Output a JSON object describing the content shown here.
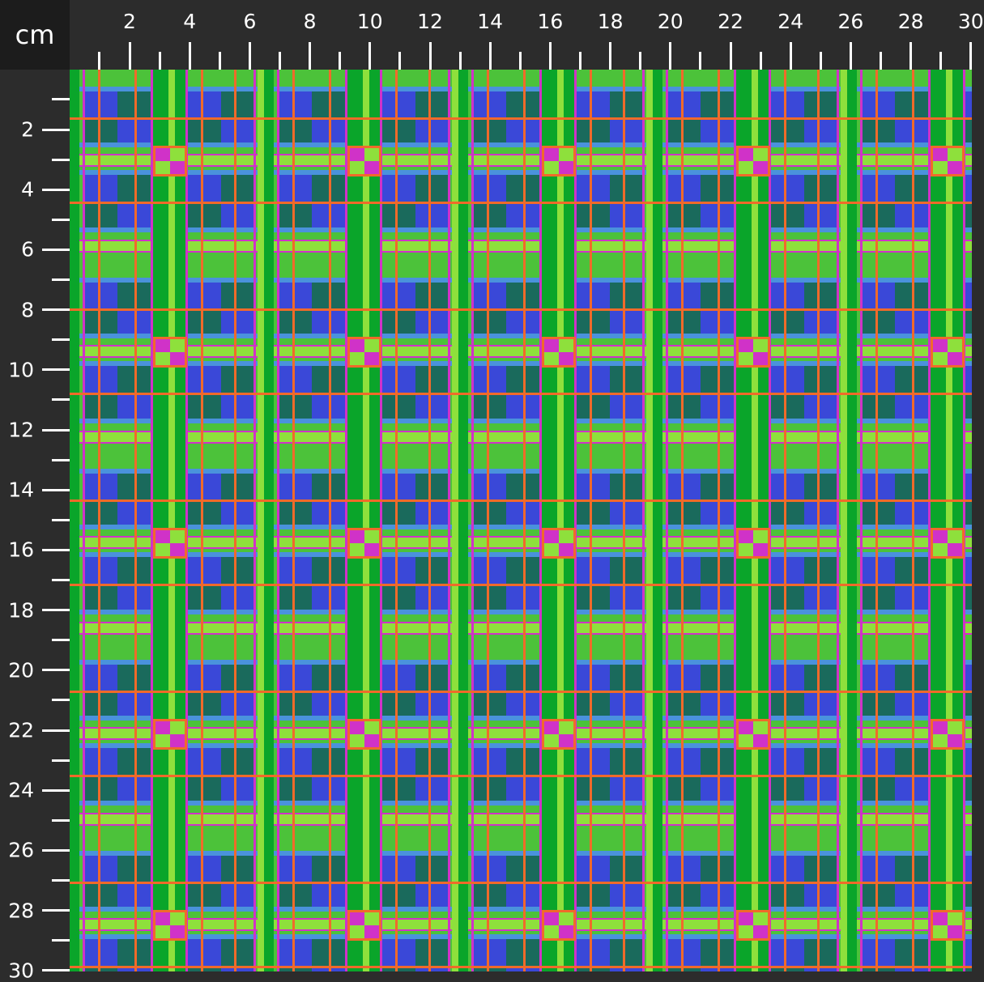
{
  "unit_label": "cm",
  "top_ruler": {
    "labels": [
      "2",
      "4",
      "6",
      "8",
      "10",
      "12",
      "14",
      "16",
      "18",
      "20",
      "22",
      "24",
      "26",
      "28",
      "30"
    ],
    "max_cm": 30
  },
  "left_ruler": {
    "labels": [
      "2",
      "4",
      "6",
      "8",
      "10",
      "12",
      "14",
      "16",
      "18",
      "20",
      "22",
      "24",
      "26",
      "28",
      "30"
    ],
    "max_cm": 30
  },
  "fabric": {
    "pattern": "plaid",
    "colors": {
      "green": "#4cc23a",
      "dark_green": "#0aa52a",
      "light_green": "#8ee03c",
      "blue": "#3a48d8",
      "teal": "#1a6a5c",
      "light_blue": "#4a92dc",
      "orange": "#f06a2a",
      "pink": "#d032c8"
    }
  }
}
